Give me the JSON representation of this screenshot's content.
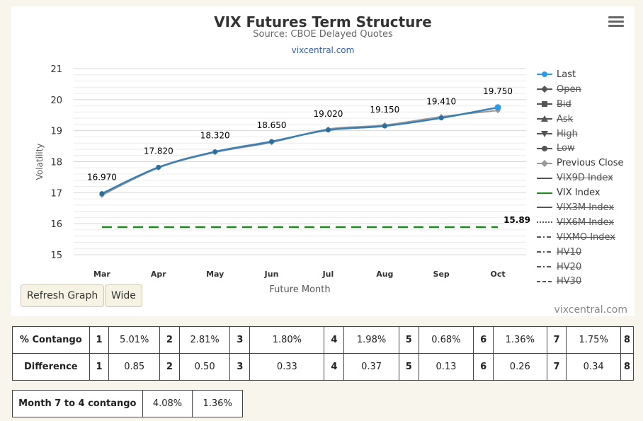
{
  "header": {
    "title": "VIX Futures Term Structure",
    "subtitle": "Source: CBOE Delayed Quotes",
    "link": "vixcentral.com"
  },
  "buttons": {
    "refresh": "Refresh Graph",
    "wide": "Wide"
  },
  "watermark": "vixcentral.com",
  "colors": {
    "last": "#2b9be6",
    "previous_close": "#999999",
    "vix_index": "#1a8a1a",
    "line": "#3a7fb4"
  },
  "legend": [
    {
      "label": "Last",
      "symbol": "circle",
      "color": "#2b9be6",
      "active": true
    },
    {
      "label": "Open",
      "symbol": "diamond",
      "color": "#555555",
      "active": false
    },
    {
      "label": "Bid",
      "symbol": "square",
      "color": "#555555",
      "active": false
    },
    {
      "label": "Ask",
      "symbol": "triangle",
      "color": "#555555",
      "active": false
    },
    {
      "label": "High",
      "symbol": "triangle-down",
      "color": "#555555",
      "active": false
    },
    {
      "label": "Low",
      "symbol": "circle",
      "color": "#555555",
      "active": false
    },
    {
      "label": "Previous Close",
      "symbol": "diamond",
      "color": "#999999",
      "active": true
    },
    {
      "label": "VIX9D Index",
      "symbol": "line",
      "color": "#555555",
      "active": false
    },
    {
      "label": "VIX Index",
      "symbol": "line",
      "color": "#1a8a1a",
      "active": true
    },
    {
      "label": "VIX3M Index",
      "symbol": "line",
      "color": "#555555",
      "active": false
    },
    {
      "label": "VIX6M Index",
      "symbol": "dotted",
      "color": "#555555",
      "active": false
    },
    {
      "label": "VIXMO Index",
      "symbol": "dashdot",
      "color": "#555555",
      "active": false
    },
    {
      "label": "HV10",
      "symbol": "dashdot",
      "color": "#555555",
      "active": false
    },
    {
      "label": "HV20",
      "symbol": "dashdot",
      "color": "#555555",
      "active": false
    },
    {
      "label": "HV30",
      "symbol": "dash",
      "color": "#555555",
      "active": false
    }
  ],
  "chart_data": {
    "type": "line",
    "xlabel": "Future Month",
    "ylabel": "Volatility",
    "ylim": [
      15,
      21
    ],
    "yticks": [
      15,
      16,
      17,
      18,
      19,
      20,
      21
    ],
    "grid": true,
    "legend_position": "right",
    "categories": [
      "Mar",
      "Apr",
      "May",
      "Jun",
      "Jul",
      "Aug",
      "Sep",
      "Oct"
    ],
    "series": [
      {
        "name": "Last",
        "values": [
          16.97,
          17.82,
          18.32,
          18.65,
          19.02,
          19.15,
          19.41,
          19.75
        ],
        "labels": [
          "16.970",
          "17.820",
          "18.320",
          "18.650",
          "19.020",
          "19.150",
          "19.410",
          "19.750"
        ]
      },
      {
        "name": "Previous Close",
        "values": [
          16.92,
          17.8,
          18.3,
          18.62,
          19.05,
          19.18,
          19.45,
          19.65
        ]
      },
      {
        "name": "VIX Index",
        "values": [
          15.89,
          15.89,
          15.89,
          15.89,
          15.89,
          15.89,
          15.89,
          15.89
        ],
        "end_label": "15.89"
      }
    ]
  },
  "contango_table": {
    "rows": [
      {
        "label": "% Contango",
        "cells": [
          "1",
          "5.01%",
          "2",
          "2.81%",
          "3",
          "1.80%",
          "4",
          "1.98%",
          "5",
          "0.68%",
          "6",
          "1.36%",
          "7",
          "1.75%",
          "8"
        ]
      },
      {
        "label": "Difference",
        "cells": [
          "1",
          "0.85",
          "2",
          "0.50",
          "3",
          "0.33",
          "4",
          "0.37",
          "5",
          "0.13",
          "6",
          "0.26",
          "7",
          "0.34",
          "8"
        ]
      }
    ]
  },
  "month_contango": {
    "label": "Month 7 to 4 contango",
    "value1": "4.08%",
    "value2": "1.36%"
  }
}
